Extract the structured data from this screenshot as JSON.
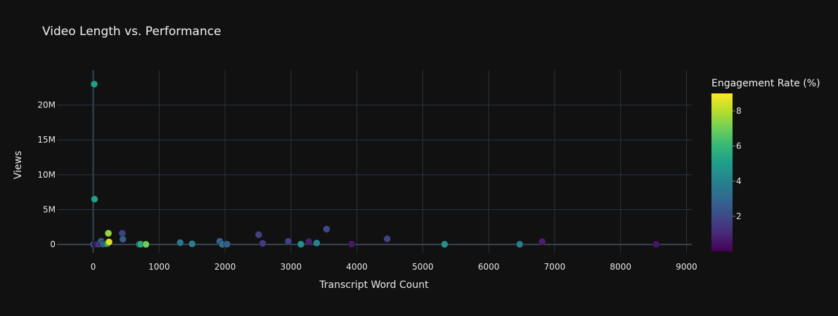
{
  "chart_data": {
    "type": "scatter",
    "title": "Video Length vs. Performance",
    "xlabel": "Transcript Word Count",
    "ylabel": "Views",
    "xlim": [
      -550,
      9080
    ],
    "ylim": [
      -1200000,
      25000000
    ],
    "x_ticks": [
      0,
      1000,
      2000,
      3000,
      4000,
      5000,
      6000,
      7000,
      8000,
      9000
    ],
    "x_tick_labels": [
      "0",
      "1000",
      "2000",
      "3000",
      "4000",
      "5000",
      "6000",
      "7000",
      "8000",
      "9000"
    ],
    "y_ticks": [
      0,
      5000000,
      10000000,
      15000000,
      20000000
    ],
    "y_tick_labels": [
      "0",
      "5M",
      "10M",
      "15M",
      "20M"
    ],
    "grid": true,
    "colorbar": {
      "title": "Engagement Rate (%)",
      "range": [
        0,
        9
      ],
      "ticks": [
        2,
        4,
        6,
        8
      ],
      "tick_labels": [
        "2",
        "4",
        "6",
        "8"
      ],
      "colorscale": "Viridis"
    },
    "points": [
      {
        "x": 15,
        "y": 23000000,
        "c": 5.0
      },
      {
        "x": 20,
        "y": 6500000,
        "c": 5.0
      },
      {
        "x": 5,
        "y": 0,
        "c": 3.0
      },
      {
        "x": 30,
        "y": 20000,
        "c": 2.0
      },
      {
        "x": 40,
        "y": 10000,
        "c": 0.6
      },
      {
        "x": 60,
        "y": 15000,
        "c": 0.8
      },
      {
        "x": 80,
        "y": 30000,
        "c": 1.2
      },
      {
        "x": 120,
        "y": 450000,
        "c": 2.5
      },
      {
        "x": 150,
        "y": 50000,
        "c": 2.8
      },
      {
        "x": 200,
        "y": 80000,
        "c": 4.5
      },
      {
        "x": 220,
        "y": 150000,
        "c": 6.0
      },
      {
        "x": 230,
        "y": 1600000,
        "c": 7.5
      },
      {
        "x": 240,
        "y": 350000,
        "c": 8.5
      },
      {
        "x": 440,
        "y": 1600000,
        "c": 1.8
      },
      {
        "x": 450,
        "y": 750000,
        "c": 2.5
      },
      {
        "x": 700,
        "y": 20000,
        "c": 4.5
      },
      {
        "x": 720,
        "y": 30000,
        "c": 5.5
      },
      {
        "x": 800,
        "y": 10000,
        "c": 7.0
      },
      {
        "x": 1320,
        "y": 250000,
        "c": 3.5
      },
      {
        "x": 1500,
        "y": 80000,
        "c": 3.8
      },
      {
        "x": 1920,
        "y": 450000,
        "c": 2.8
      },
      {
        "x": 1960,
        "y": 20000,
        "c": 3.3
      },
      {
        "x": 2030,
        "y": 30000,
        "c": 2.6
      },
      {
        "x": 2510,
        "y": 1400000,
        "c": 1.8
      },
      {
        "x": 2570,
        "y": 150000,
        "c": 1.6
      },
      {
        "x": 2960,
        "y": 450000,
        "c": 1.8
      },
      {
        "x": 3150,
        "y": 30000,
        "c": 4.5
      },
      {
        "x": 3270,
        "y": 400000,
        "c": 0.8
      },
      {
        "x": 3390,
        "y": 200000,
        "c": 4.0
      },
      {
        "x": 3540,
        "y": 2200000,
        "c": 2.0
      },
      {
        "x": 3920,
        "y": 50000,
        "c": 0.6
      },
      {
        "x": 4460,
        "y": 800000,
        "c": 1.8
      },
      {
        "x": 5330,
        "y": 20000,
        "c": 4.5
      },
      {
        "x": 6470,
        "y": 20000,
        "c": 3.8
      },
      {
        "x": 6810,
        "y": 400000,
        "c": 0.8
      },
      {
        "x": 8540,
        "y": 10000,
        "c": 0.5
      }
    ]
  }
}
